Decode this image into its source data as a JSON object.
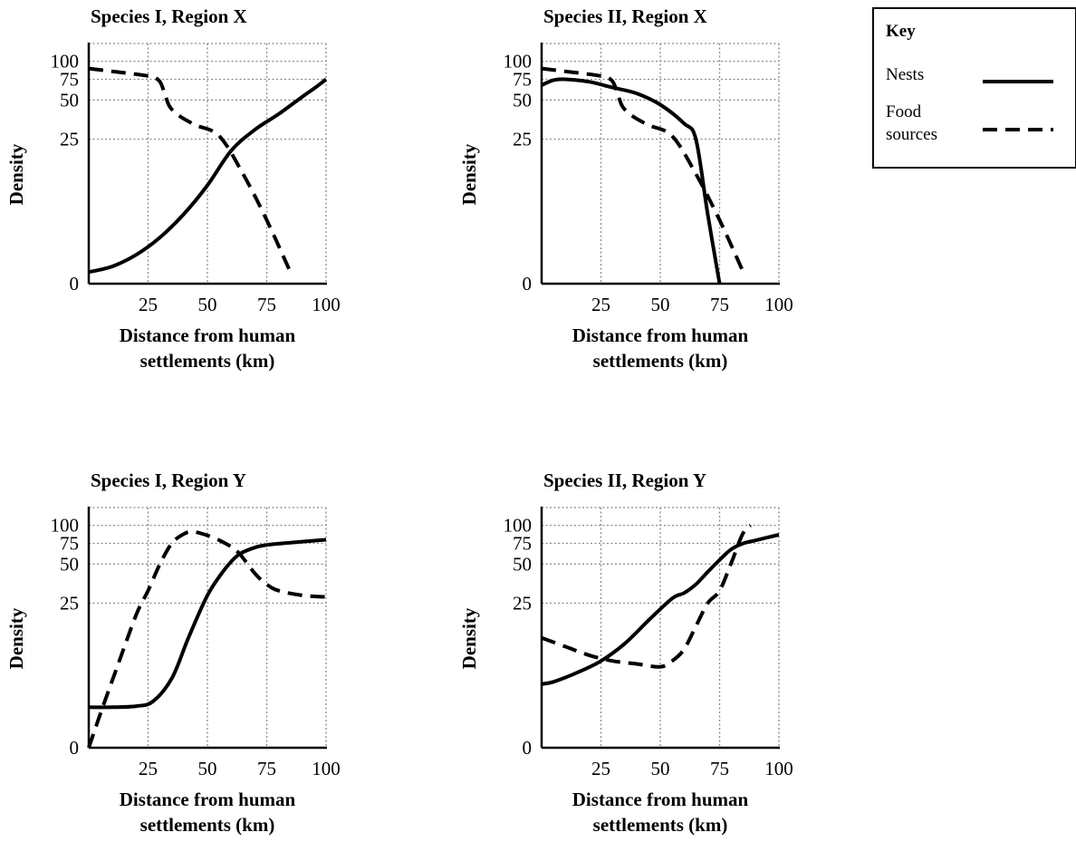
{
  "key": {
    "title": "Key",
    "items": [
      {
        "label_lines": [
          "Nests"
        ],
        "style": "solid"
      },
      {
        "label_lines": [
          "Food",
          "sources"
        ],
        "style": "dashed"
      }
    ]
  },
  "chart_data": [
    {
      "type": "line",
      "title": "Species I, Region X",
      "xlabel": [
        "Distance from human",
        "settlements (km)"
      ],
      "ylabel": "Density",
      "xlim": [
        0,
        100
      ],
      "ylim": [
        0,
        100
      ],
      "x_ticks": [
        25,
        50,
        75,
        100
      ],
      "y_ticks": [
        0,
        25,
        50,
        75,
        100
      ],
      "y_tick_labels": [
        "0",
        "25",
        "50",
        "75",
        "100"
      ],
      "y_tick_pos": [
        0,
        65,
        82.6,
        91.9,
        100
      ],
      "grid": true,
      "series": [
        {
          "name": "Nests",
          "style": "solid",
          "points": [
            [
              0,
              2
            ],
            [
              10,
              3
            ],
            [
              20,
              5
            ],
            [
              30,
              8
            ],
            [
              40,
              12
            ],
            [
              50,
              17
            ],
            [
              60,
              23
            ],
            [
              70,
              31
            ],
            [
              80,
              41
            ],
            [
              90,
              54
            ],
            [
              95,
              64
            ],
            [
              100,
              75
            ]
          ]
        },
        {
          "name": "Food sources",
          "style": "dashed",
          "points": [
            [
              0,
              90
            ],
            [
              10,
              86
            ],
            [
              20,
              82
            ],
            [
              27,
              78
            ],
            [
              30,
              72
            ],
            [
              32,
              58
            ],
            [
              34,
              46
            ],
            [
              38,
              40
            ],
            [
              45,
              34
            ],
            [
              55,
              27
            ],
            [
              65,
              19
            ],
            [
              75,
              11
            ],
            [
              85,
              2
            ]
          ]
        }
      ]
    },
    {
      "type": "line",
      "title": "Species II, Region X",
      "xlabel": [
        "Distance from human",
        "settlements (km)"
      ],
      "ylabel": "Density",
      "xlim": [
        0,
        100
      ],
      "ylim": [
        0,
        100
      ],
      "x_ticks": [
        25,
        50,
        75,
        100
      ],
      "y_ticks": [
        0,
        25,
        50,
        75,
        100
      ],
      "y_tick_labels": [
        "0",
        "25",
        "50",
        "75",
        "100"
      ],
      "y_tick_pos": [
        0,
        65,
        82.6,
        91.9,
        100
      ],
      "grid": true,
      "series": [
        {
          "name": "Nests",
          "style": "solid",
          "points": [
            [
              0,
              68
            ],
            [
              5,
              74
            ],
            [
              10,
              75
            ],
            [
              20,
              72
            ],
            [
              30,
              65
            ],
            [
              40,
              58
            ],
            [
              50,
              47
            ],
            [
              60,
              35
            ],
            [
              65,
              25
            ],
            [
              70,
              12
            ],
            [
              75,
              0
            ]
          ]
        },
        {
          "name": "Food sources",
          "style": "dashed",
          "points": [
            [
              0,
              90
            ],
            [
              10,
              86
            ],
            [
              20,
              82
            ],
            [
              27,
              78
            ],
            [
              30,
              72
            ],
            [
              32,
              58
            ],
            [
              34,
              46
            ],
            [
              38,
              40
            ],
            [
              45,
              34
            ],
            [
              55,
              27
            ],
            [
              65,
              19
            ],
            [
              75,
              11
            ],
            [
              85,
              2
            ]
          ]
        }
      ]
    },
    {
      "type": "line",
      "title": "Species I, Region Y",
      "xlabel": [
        "Distance from human",
        "settlements (km)"
      ],
      "ylabel": "Density",
      "xlim": [
        0,
        100
      ],
      "ylim": [
        0,
        100
      ],
      "x_ticks": [
        25,
        50,
        75,
        100
      ],
      "y_ticks": [
        0,
        25,
        50,
        75,
        100
      ],
      "y_tick_labels": [
        "0",
        "25",
        "50",
        "75",
        "100"
      ],
      "y_tick_pos": [
        0,
        65,
        82.6,
        91.9,
        100
      ],
      "grid": true,
      "series": [
        {
          "name": "Nests",
          "style": "solid",
          "points": [
            [
              0,
              7
            ],
            [
              10,
              7
            ],
            [
              20,
              7.2
            ],
            [
              27,
              8
            ],
            [
              35,
              12
            ],
            [
              42,
              19
            ],
            [
              50,
              30
            ],
            [
              57,
              46
            ],
            [
              63,
              61
            ],
            [
              70,
              70
            ],
            [
              75,
              73
            ],
            [
              85,
              76
            ],
            [
              100,
              80
            ]
          ]
        },
        {
          "name": "Food sources",
          "style": "dashed",
          "points": [
            [
              0,
              0
            ],
            [
              5,
              6
            ],
            [
              12,
              14
            ],
            [
              20,
              23
            ],
            [
              25,
              33
            ],
            [
              30,
              50
            ],
            [
              35,
              75
            ],
            [
              40,
              88
            ],
            [
              44,
              91
            ],
            [
              50,
              86
            ],
            [
              57,
              76
            ],
            [
              63,
              64
            ],
            [
              70,
              44
            ],
            [
              75,
              37
            ],
            [
              80,
              33
            ],
            [
              90,
              30
            ],
            [
              100,
              29
            ]
          ]
        }
      ]
    },
    {
      "type": "line",
      "title": "Species II, Region Y",
      "xlabel": [
        "Distance from human",
        "settlements (km)"
      ],
      "ylabel": "Density",
      "xlim": [
        0,
        100
      ],
      "ylim": [
        0,
        100
      ],
      "x_ticks": [
        25,
        50,
        75,
        100
      ],
      "y_ticks": [
        0,
        25,
        50,
        75,
        100
      ],
      "y_tick_labels": [
        "0",
        "25",
        "50",
        "75",
        "100"
      ],
      "y_tick_pos": [
        0,
        65,
        82.6,
        91.9,
        100
      ],
      "grid": true,
      "series": [
        {
          "name": "Nests",
          "style": "solid",
          "points": [
            [
              0,
              11
            ],
            [
              5,
              11.4
            ],
            [
              15,
              13
            ],
            [
              25,
              15
            ],
            [
              35,
              18
            ],
            [
              45,
              22
            ],
            [
              55,
              28
            ],
            [
              60,
              31.5
            ],
            [
              65,
              37
            ],
            [
              70,
              45
            ],
            [
              75,
              55
            ],
            [
              80,
              68
            ],
            [
              85,
              75
            ],
            [
              90,
              79
            ],
            [
              100,
              87
            ]
          ]
        },
        {
          "name": "Food sources",
          "style": "dashed",
          "points": [
            [
              0,
              19
            ],
            [
              10,
              17.5
            ],
            [
              20,
              16
            ],
            [
              30,
              15
            ],
            [
              40,
              14.5
            ],
            [
              50,
              14
            ],
            [
              55,
              15
            ],
            [
              60,
              17
            ],
            [
              65,
              21
            ],
            [
              70,
              25
            ],
            [
              75,
              33
            ],
            [
              80,
              52
            ],
            [
              82,
              67
            ],
            [
              84,
              83
            ],
            [
              86,
              95
            ],
            [
              88,
              100
            ]
          ]
        }
      ]
    }
  ]
}
